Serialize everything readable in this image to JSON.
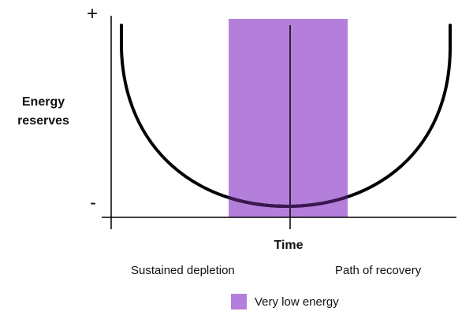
{
  "axes": {
    "y_label_line1": "Energy",
    "y_label_line2": "reserves",
    "y_top_marker": "+",
    "y_bottom_marker": "-",
    "x_label": "Time"
  },
  "phases": {
    "left": "Sustained depletion",
    "right": "Path of recovery"
  },
  "legend": {
    "label": "Very low energy",
    "color": "#b47fda"
  },
  "colors": {
    "curve": "#000000",
    "curve_in_band": "#3a1750",
    "axes": "#000000"
  }
}
